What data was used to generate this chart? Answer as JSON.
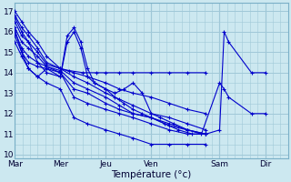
{
  "xlabel": "Température (°c)",
  "ylabel": "",
  "background_color": "#cce8f0",
  "grid_color": "#a0c8d8",
  "line_color": "#0000cc",
  "ylim": [
    9.8,
    17.4
  ],
  "xlim": [
    0,
    6.0
  ],
  "yticks": [
    10,
    11,
    12,
    13,
    14,
    15,
    16,
    17
  ],
  "xtick_labels": [
    "Mar",
    "Mer",
    "Jeu",
    "Ven",
    "Sam",
    "Dir"
  ],
  "xtick_positions": [
    0.0,
    1.0,
    2.0,
    3.0,
    4.5,
    5.5
  ],
  "series": [
    {
      "x": [
        0.0,
        0.15,
        0.3,
        0.5,
        0.7,
        1.0,
        1.2,
        1.5,
        1.8,
        2.0,
        2.3,
        2.6,
        3.0,
        3.4,
        3.8,
        4.2
      ],
      "y": [
        17.0,
        16.5,
        16.0,
        15.5,
        14.8,
        14.2,
        14.1,
        14.0,
        14.0,
        14.0,
        14.0,
        14.0,
        14.0,
        14.0,
        14.0,
        14.0
      ]
    },
    {
      "x": [
        0.0,
        0.15,
        0.3,
        0.5,
        0.7,
        1.0,
        1.3,
        1.6,
        2.0,
        2.3,
        2.6,
        3.0,
        3.4,
        3.8,
        4.2
      ],
      "y": [
        16.8,
        16.2,
        15.8,
        15.2,
        14.5,
        14.2,
        14.0,
        13.8,
        13.5,
        13.2,
        13.0,
        12.8,
        12.5,
        12.2,
        12.0
      ]
    },
    {
      "x": [
        0.0,
        0.15,
        0.3,
        0.5,
        0.7,
        1.0,
        1.3,
        1.6,
        2.0,
        2.3,
        2.6,
        3.0,
        3.4,
        3.8,
        4.2
      ],
      "y": [
        16.5,
        15.8,
        15.5,
        15.0,
        14.4,
        14.2,
        13.8,
        13.5,
        13.0,
        12.7,
        12.4,
        12.0,
        11.8,
        11.5,
        11.2
      ]
    },
    {
      "x": [
        0.0,
        0.15,
        0.3,
        0.5,
        0.7,
        1.0,
        1.3,
        1.6,
        2.0,
        2.3,
        2.6,
        3.0,
        3.4,
        3.8,
        4.2
      ],
      "y": [
        16.2,
        15.5,
        15.2,
        14.8,
        14.3,
        14.1,
        13.5,
        13.2,
        12.8,
        12.4,
        12.0,
        11.8,
        11.5,
        11.2,
        11.0
      ]
    },
    {
      "x": [
        0.0,
        0.15,
        0.3,
        0.5,
        0.7,
        1.0,
        1.3,
        1.6,
        2.0,
        2.3,
        2.6,
        3.0,
        3.4,
        3.8,
        4.2
      ],
      "y": [
        16.0,
        15.2,
        14.8,
        14.5,
        14.3,
        14.0,
        13.2,
        13.0,
        12.5,
        12.2,
        12.0,
        11.8,
        11.4,
        11.2,
        11.0
      ]
    },
    {
      "x": [
        0.0,
        0.15,
        0.3,
        0.5,
        0.7,
        1.0,
        1.3,
        1.6,
        2.0,
        2.3,
        2.6,
        3.0,
        3.4,
        3.8,
        4.2
      ],
      "y": [
        15.8,
        15.0,
        14.5,
        14.3,
        14.2,
        14.0,
        12.8,
        12.5,
        12.2,
        12.0,
        11.8,
        11.5,
        11.2,
        11.0,
        11.0
      ]
    },
    {
      "x": [
        0.0,
        0.15,
        0.3,
        0.5,
        0.7,
        1.0,
        1.3,
        1.6,
        2.0,
        2.3,
        2.6,
        3.0,
        3.4,
        3.8,
        4.2
      ],
      "y": [
        16.1,
        15.0,
        14.2,
        13.8,
        13.5,
        13.2,
        11.8,
        11.5,
        11.2,
        11.0,
        10.8,
        10.5,
        10.5,
        10.5,
        10.5
      ]
    },
    {
      "x": [
        0.0,
        0.15,
        0.3,
        0.5,
        0.7,
        1.0,
        1.15,
        1.3,
        1.45,
        1.6,
        1.75,
        2.0,
        2.2,
        2.4,
        2.6,
        2.8,
        3.0,
        3.3,
        3.6,
        3.9,
        4.2,
        4.5,
        4.6,
        4.7,
        5.2,
        5.5
      ],
      "y": [
        16.7,
        16.0,
        15.5,
        14.5,
        14.0,
        13.8,
        15.8,
        16.2,
        15.5,
        14.2,
        13.5,
        13.2,
        12.8,
        12.5,
        12.2,
        12.0,
        11.8,
        11.5,
        11.2,
        11.0,
        11.0,
        11.2,
        16.0,
        15.5,
        14.0,
        14.0
      ]
    },
    {
      "x": [
        0.0,
        0.15,
        0.3,
        0.5,
        0.7,
        1.0,
        1.15,
        1.3,
        1.45,
        1.6,
        1.75,
        2.0,
        2.2,
        2.4,
        2.6,
        2.8,
        3.0,
        3.2,
        3.5,
        3.8,
        4.1,
        4.5,
        4.6,
        4.7,
        5.2,
        5.5
      ],
      "y": [
        15.5,
        14.8,
        14.2,
        13.8,
        14.2,
        13.8,
        15.5,
        16.0,
        15.2,
        13.8,
        13.5,
        13.2,
        13.0,
        13.2,
        13.5,
        13.0,
        12.0,
        11.8,
        11.5,
        11.2,
        11.0,
        13.5,
        13.2,
        12.8,
        12.0,
        12.0
      ]
    }
  ]
}
